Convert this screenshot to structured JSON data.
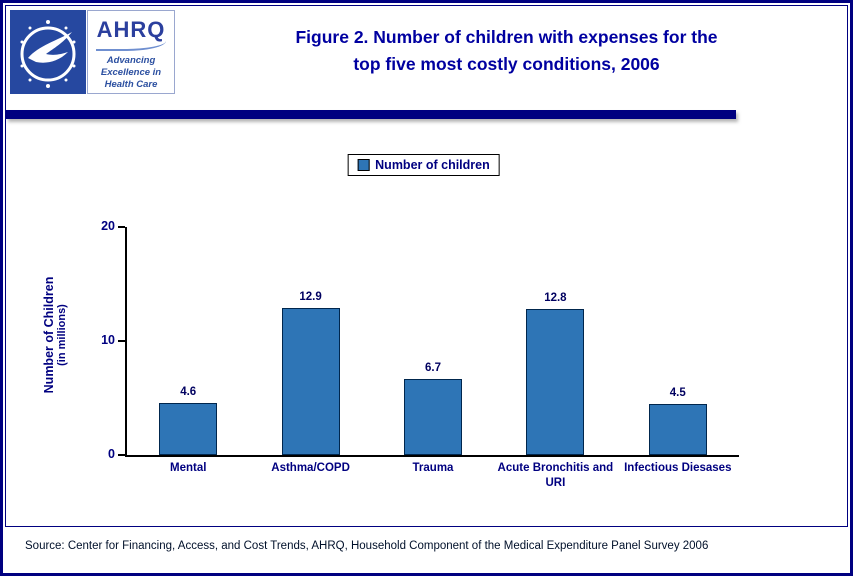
{
  "header": {
    "title_line1": "Figure 2. Number of children with expenses for the",
    "title_line2": "top five most costly conditions, 2006",
    "ahrq": {
      "acronym": "AHRQ",
      "tagline1": "Advancing",
      "tagline2": "Excellence in",
      "tagline3": "Health Care"
    }
  },
  "legend": {
    "label": "Number of children"
  },
  "chart_data": {
    "type": "bar",
    "categories": [
      "Mental",
      "Asthma/COPD",
      "Trauma",
      "Acute Bronchitis and URI",
      "Infectious Diesases"
    ],
    "values": [
      4.6,
      12.9,
      6.7,
      12.8,
      4.5
    ],
    "title": "Figure 2. Number of children with expenses for the top five most costly conditions, 2006",
    "xlabel": "",
    "ylabel": "Number of Children",
    "ylabel_sub": "(in millions)",
    "ylim": [
      0,
      20
    ],
    "yticks": [
      0,
      10,
      20
    ],
    "grid": false,
    "legend_entries": [
      "Number of children"
    ],
    "legend_position": "top-center",
    "bar_color": "#2e75b6",
    "axis_color": "#000000",
    "label_color": "#000080"
  },
  "colors": {
    "border_navy": "#000080",
    "title_navy": "#0000a0",
    "hhs_blue": "#2648a0",
    "bar_blue": "#2e75b6"
  },
  "footer": {
    "source": "Source: Center for Financing, Access, and Cost Trends, AHRQ, Household Component of the Medical Expenditure Panel Survey 2006"
  }
}
